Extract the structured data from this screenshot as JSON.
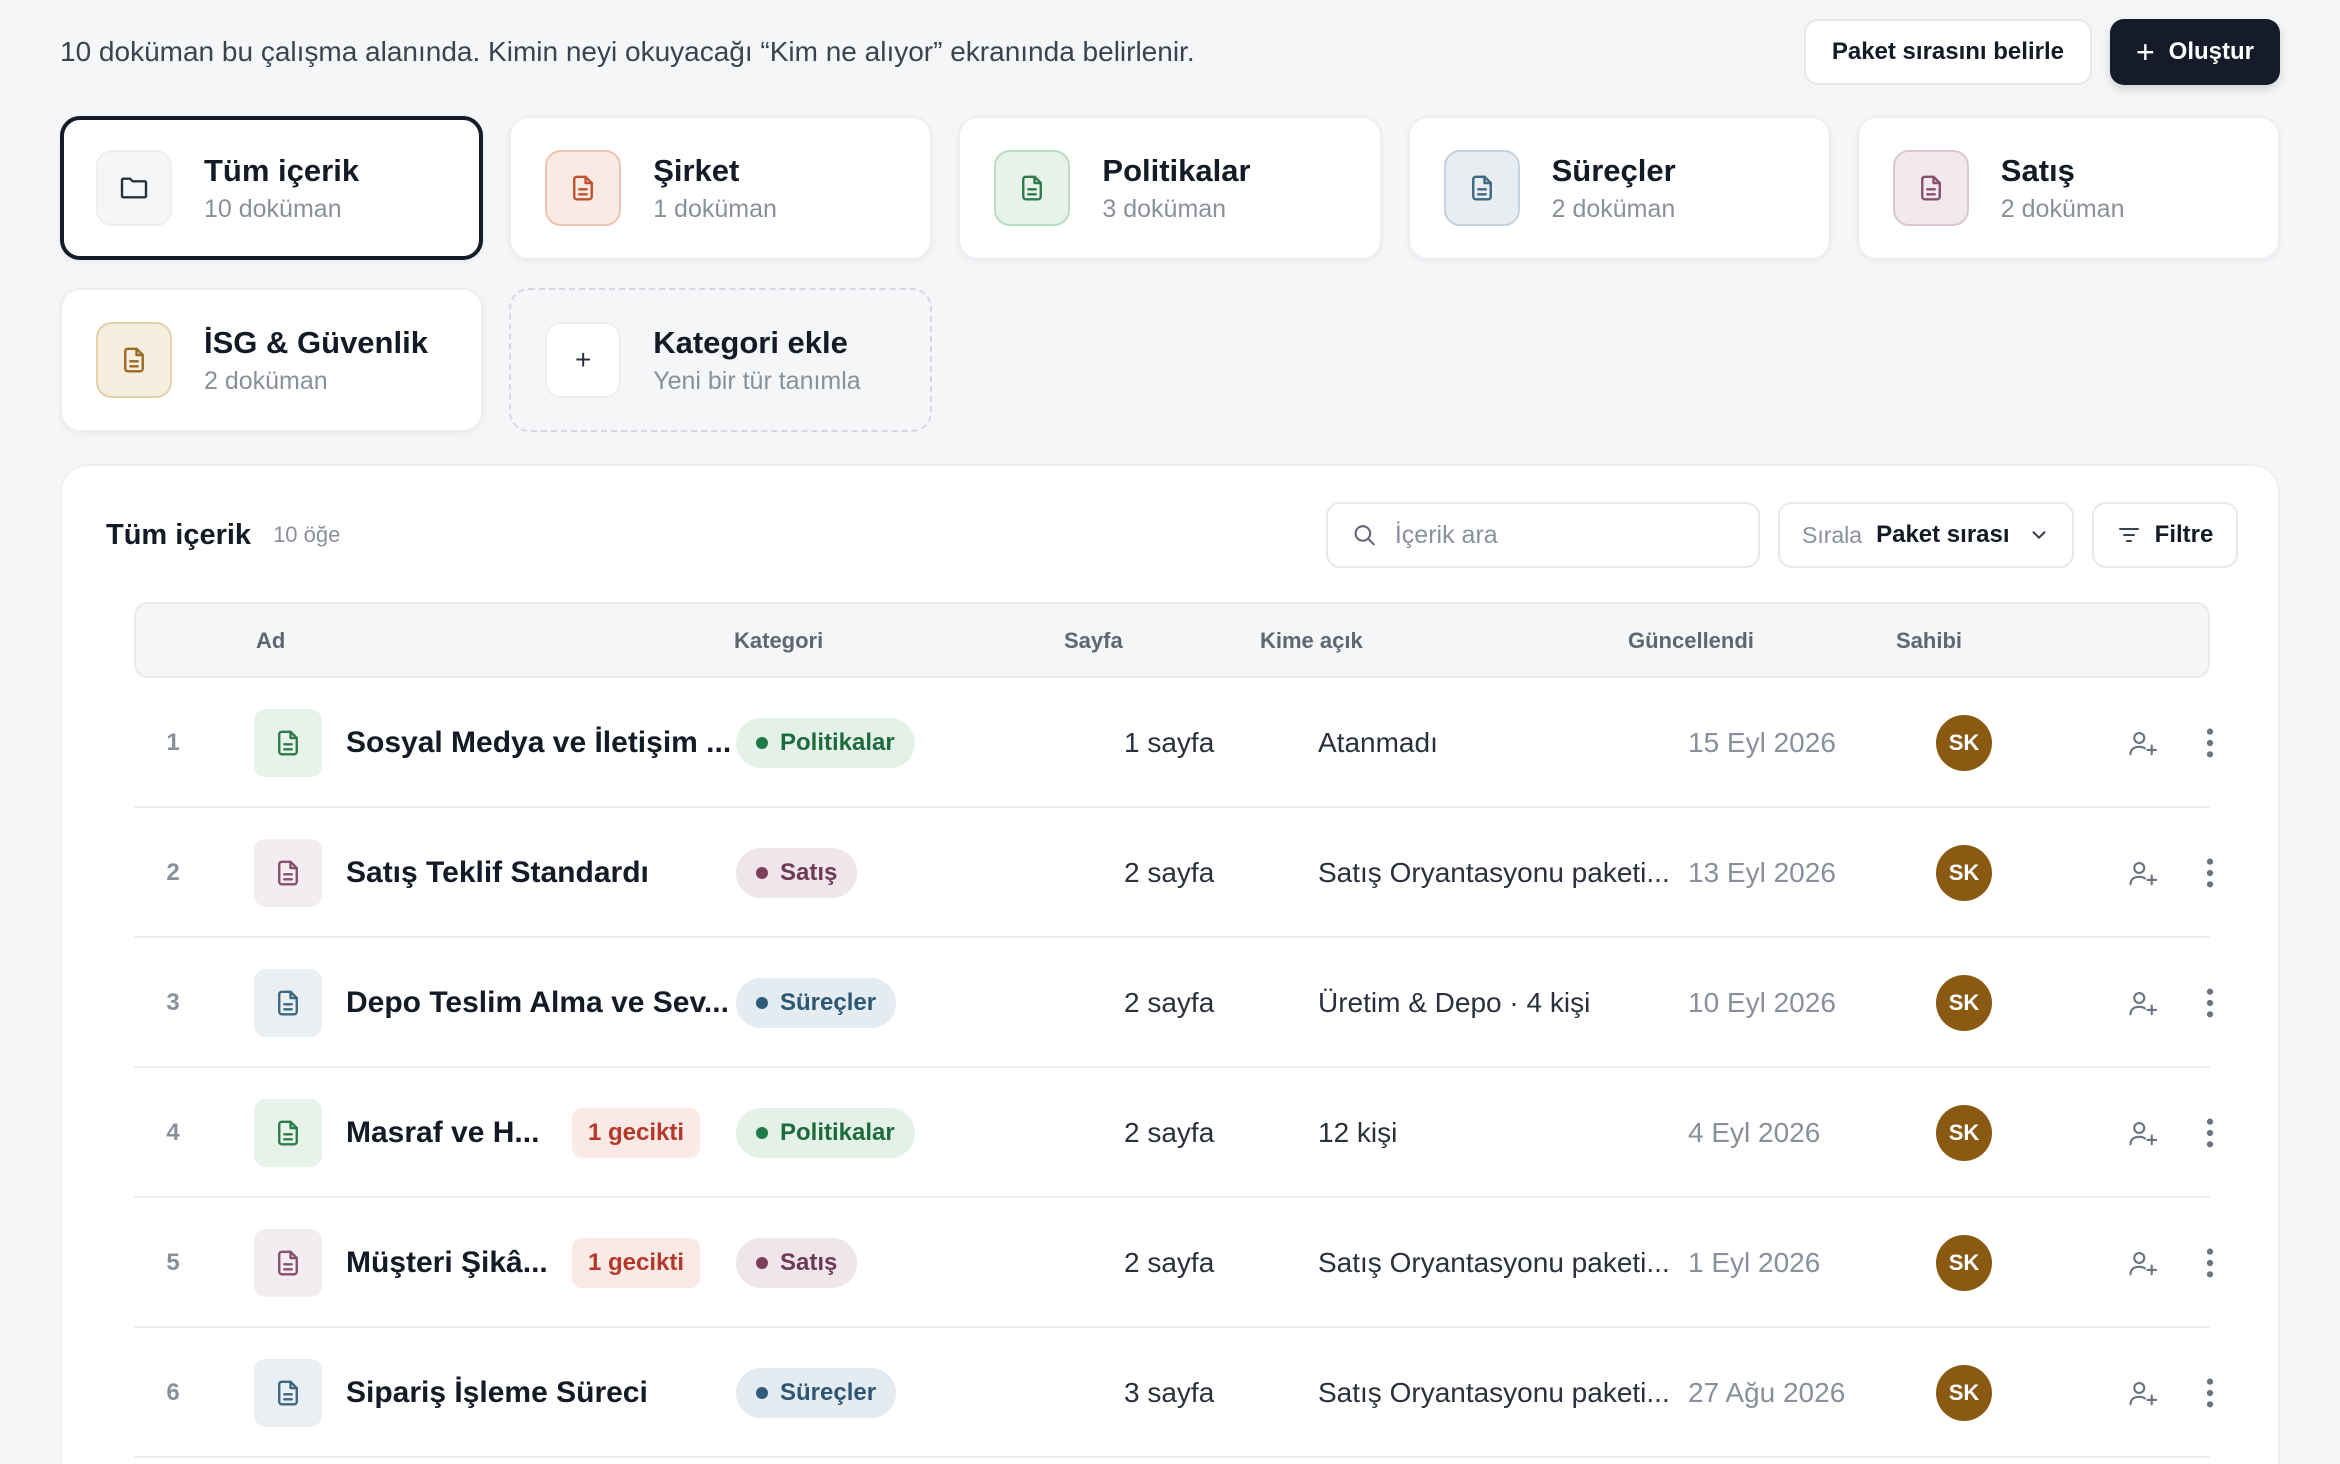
{
  "header": {
    "intro": "10 doküman bu çalışma alanında. Kimin neyi okuyacağı “Kim ne alıyor” ekranında belirlenir.",
    "order_button": "Paket sırasını belirle",
    "create_button": "Oluştur"
  },
  "categories": [
    {
      "title": "Tüm içerik",
      "sub": "10 doküman",
      "icon": "folder-icon",
      "active": true
    },
    {
      "title": "Şirket",
      "sub": "1 doküman",
      "icon": "document-icon",
      "bg": "#fbeae4",
      "border": "#efc3b4",
      "color": "#c0502e"
    },
    {
      "title": "Politikalar",
      "sub": "3 doküman",
      "icon": "document-icon",
      "bg": "#e6f2ea",
      "border": "#b9dcc5",
      "color": "#2e7a4b"
    },
    {
      "title": "Süreçler",
      "sub": "2 doküman",
      "icon": "document-icon",
      "bg": "#e7edf1",
      "border": "#c3d2dc",
      "color": "#3d6680"
    },
    {
      "title": "Satış",
      "sub": "2 doküman",
      "icon": "document-icon",
      "bg": "#f1e9ed",
      "border": "#dcc6d1",
      "color": "#84506a"
    },
    {
      "title": "İSG & Güvenlik",
      "sub": "2 doküman",
      "icon": "document-icon",
      "bg": "#f6eedf",
      "border": "#e3d0ac",
      "color": "#9a6a22"
    },
    {
      "title": "Kategori ekle",
      "sub": "Yeni bir tür tanımla",
      "icon": "plus-icon",
      "dashed": true
    }
  ],
  "panel": {
    "title": "Tüm içerik",
    "count": "10 öğe",
    "search_placeholder": "İçerik ara",
    "sort_label": "Sırala",
    "sort_value": "Paket sırası",
    "filter_label": "Filtre"
  },
  "table": {
    "headers": {
      "name": "Ad",
      "category": "Kategori",
      "pages": "Sayfa",
      "access": "Kime açık",
      "updated": "Güncellendi",
      "owner": "Sahibi"
    },
    "rows": [
      {
        "num": "1",
        "name": "Sosyal Medya ve İletişim ...",
        "late": "",
        "category": "Politikalar",
        "cat": "pol",
        "pages": "1 sayfa",
        "access": "Atanmadı",
        "updated": "15 Eyl 2026",
        "owner": "SK"
      },
      {
        "num": "2",
        "name": "Satış Teklif Standardı",
        "late": "",
        "category": "Satış",
        "cat": "sat",
        "pages": "2 sayfa",
        "access": "Satış Oryantasyonu paketi...",
        "updated": "13 Eyl 2026",
        "owner": "SK"
      },
      {
        "num": "3",
        "name": "Depo Teslim Alma ve Sev...",
        "late": "",
        "category": "Süreçler",
        "cat": "sur",
        "pages": "2 sayfa",
        "access": "Üretim & Depo · 4 kişi",
        "updated": "10 Eyl 2026",
        "owner": "SK"
      },
      {
        "num": "4",
        "name": "Masraf ve H...",
        "late": "1 gecikti",
        "category": "Politikalar",
        "cat": "pol",
        "pages": "2 sayfa",
        "access": "12 kişi",
        "updated": "4 Eyl 2026",
        "owner": "SK"
      },
      {
        "num": "5",
        "name": "Müşteri Şikâ...",
        "late": "1 gecikti",
        "category": "Satış",
        "cat": "sat",
        "pages": "2 sayfa",
        "access": "Satış Oryantasyonu paketi...",
        "updated": "1 Eyl 2026",
        "owner": "SK"
      },
      {
        "num": "6",
        "name": "Sipariş İşleme Süreci",
        "late": "",
        "category": "Süreçler",
        "cat": "sur",
        "pages": "3 sayfa",
        "access": "Satış Oryantasyonu paketi...",
        "updated": "27 Ağu 2026",
        "owner": "SK"
      }
    ]
  },
  "category_colors": {
    "pol": {
      "bg": "#e3f1e8",
      "dot": "#1f7a45",
      "text": "#1f6b3e",
      "icon_bg": "#e6f2ea",
      "icon": "#2e7a4b"
    },
    "sat": {
      "bg": "#efe6eb",
      "dot": "#7d3f5c",
      "text": "#6e3a53",
      "icon_bg": "#f3ecf0",
      "icon": "#84506a"
    },
    "sur": {
      "bg": "#e5ecf1",
      "dot": "#2f5b78",
      "text": "#2d5672",
      "icon_bg": "#e9eff2",
      "icon": "#3d6680"
    }
  }
}
